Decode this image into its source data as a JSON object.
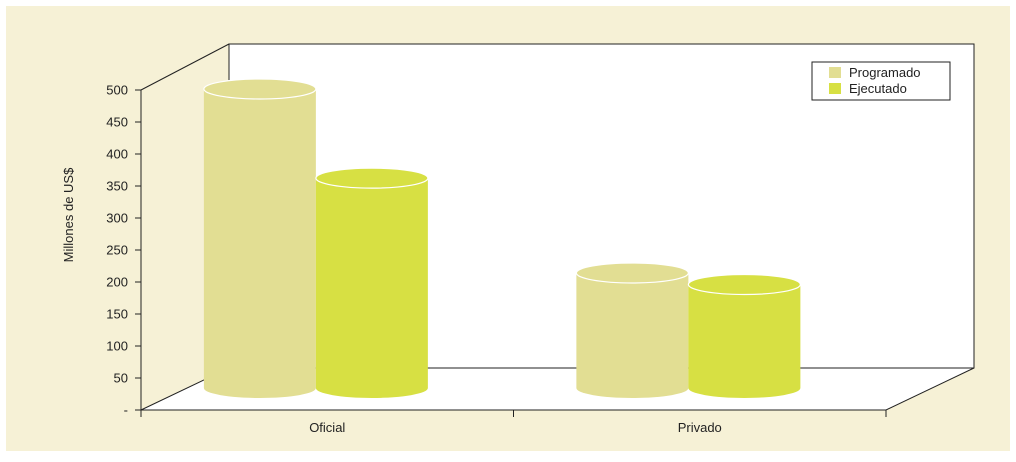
{
  "colors": {
    "panel": "#f6f1d6",
    "programado": "#e2de93",
    "ejecutado": "#d7e043",
    "axis": "#222222"
  },
  "chart_data": {
    "type": "bar",
    "title": "",
    "xlabel": "",
    "ylabel": "Millones de US$",
    "ylim": [
      0,
      500
    ],
    "yticks": [
      "-",
      "50",
      "100",
      "150",
      "200",
      "250",
      "300",
      "350",
      "400",
      "450",
      "500"
    ],
    "categories": [
      "Oficial",
      "Privado"
    ],
    "series": [
      {
        "name": "Programado",
        "values": [
          520,
          200
        ]
      },
      {
        "name": "Ejecutado",
        "values": [
          365,
          180
        ]
      }
    ],
    "legend": "top-right",
    "style": "3d-cylinder",
    "grid": false
  }
}
